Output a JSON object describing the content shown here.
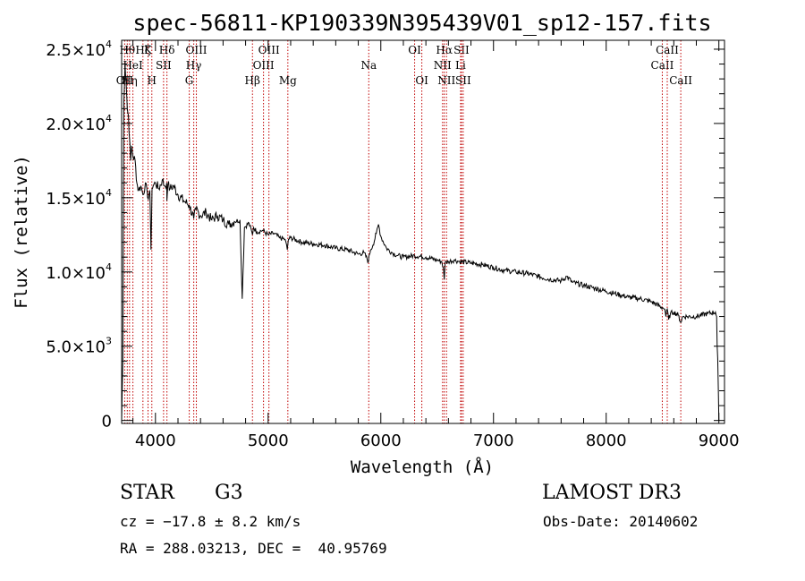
{
  "chart_data": {
    "type": "line",
    "title": "spec-56811-KP190339N395439V01_sp12-157.fits",
    "xlabel": "Wavelength (Å)",
    "ylabel": "Flux (relative)",
    "xlim": [
      3700,
      9050
    ],
    "ylim": [
      -200,
      25600
    ],
    "xticks": [
      {
        "value": 4000,
        "label": "4000"
      },
      {
        "value": 5000,
        "label": "5000"
      },
      {
        "value": 6000,
        "label": "6000"
      },
      {
        "value": 7000,
        "label": "7000"
      },
      {
        "value": 8000,
        "label": "8000"
      },
      {
        "value": 9000,
        "label": "9000"
      }
    ],
    "yticks": [
      {
        "value": 0,
        "mantissa": "0",
        "exp": ""
      },
      {
        "value": 5000,
        "mantissa": "5.0×10",
        "exp": "3"
      },
      {
        "value": 10000,
        "mantissa": "1.0×10",
        "exp": "4"
      },
      {
        "value": 15000,
        "mantissa": "1.5×10",
        "exp": "4"
      },
      {
        "value": 20000,
        "mantissa": "2.0×10",
        "exp": "4"
      },
      {
        "value": 25000,
        "mantissa": "2.5×10",
        "exp": "4"
      }
    ],
    "series": [
      {
        "name": "spectrum",
        "x": [
          3700,
          3710,
          3720,
          3730,
          3740,
          3750,
          3760,
          3770,
          3780,
          3790,
          3800,
          3820,
          3835,
          3850,
          3870,
          3890,
          3910,
          3930,
          3950,
          3960,
          3970,
          3980,
          4000,
          4030,
          4060,
          4080,
          4100,
          4102,
          4110,
          4130,
          4160,
          4200,
          4250,
          4300,
          4340,
          4360,
          4400,
          4450,
          4500,
          4550,
          4600,
          4650,
          4700,
          4750,
          4770,
          4790,
          4830,
          4861,
          4870,
          4900,
          4950,
          5000,
          5050,
          5100,
          5150,
          5170,
          5180,
          5200,
          5300,
          5400,
          5500,
          5600,
          5700,
          5800,
          5850,
          5890,
          5900,
          5910,
          5930,
          5960,
          5980,
          6000,
          6050,
          6100,
          6150,
          6200,
          6300,
          6400,
          6500,
          6540,
          6555,
          6563,
          6570,
          6600,
          6650,
          6700,
          6800,
          6900,
          7000,
          7100,
          7200,
          7300,
          7400,
          7500,
          7600,
          7650,
          7700,
          7800,
          7900,
          8000,
          8100,
          8200,
          8300,
          8400,
          8500,
          8520,
          8530,
          8542,
          8555,
          8570,
          8600,
          8640,
          8662,
          8680,
          8720,
          8800,
          8900,
          8970,
          8980,
          8985,
          8990,
          9000,
          9005
        ],
        "values": [
          0,
          4000,
          21500,
          24000,
          22800,
          21000,
          20500,
          19000,
          17500,
          18500,
          17800,
          17500,
          16000,
          15500,
          15800,
          15200,
          16000,
          15000,
          15500,
          11500,
          15600,
          15800,
          16000,
          15600,
          16200,
          15800,
          16000,
          14800,
          15900,
          15600,
          15800,
          15200,
          14800,
          14500,
          13600,
          14200,
          13800,
          14000,
          13500,
          13800,
          13500,
          13200,
          13400,
          13500,
          8200,
          13000,
          13300,
          12500,
          13000,
          12700,
          12800,
          12500,
          12600,
          12300,
          12200,
          11500,
          12200,
          12300,
          12000,
          11900,
          11800,
          11600,
          11500,
          11200,
          11300,
          10700,
          11200,
          11500,
          11800,
          12600,
          13200,
          12400,
          11600,
          11300,
          11100,
          11000,
          11100,
          11000,
          10800,
          10700,
          10300,
          9500,
          10600,
          10700,
          10800,
          10700,
          10600,
          10500,
          10300,
          10100,
          10000,
          9900,
          9700,
          9500,
          9400,
          9700,
          9300,
          9100,
          8900,
          8700,
          8500,
          8300,
          8200,
          8000,
          7600,
          7500,
          7000,
          7500,
          6800,
          7200,
          7300,
          7100,
          6600,
          7000,
          7000,
          7000,
          7200,
          7300,
          7000,
          5000,
          4200,
          0,
          0
        ]
      }
    ],
    "line_markers": [
      {
        "wave": 3727,
        "label": "OII",
        "row": 3
      },
      {
        "wave": 3750,
        "label": "Hθ",
        "row": 1
      },
      {
        "wave": 3770,
        "label": "Hη",
        "row": 3
      },
      {
        "wave": 3800,
        "label": "HeI",
        "row": 2
      },
      {
        "wave": 3889,
        "label": "Hζ",
        "row": 1
      },
      {
        "wave": 3934,
        "label": "K",
        "row": 1
      },
      {
        "wave": 3968,
        "label": "H",
        "row": 3
      },
      {
        "wave": 4072,
        "label": "SII",
        "row": 2
      },
      {
        "wave": 4102,
        "label": "Hδ",
        "row": 1
      },
      {
        "wave": 4300,
        "label": "G",
        "row": 3
      },
      {
        "wave": 4340,
        "label": "Hγ",
        "row": 2
      },
      {
        "wave": 4363,
        "label": "OIII",
        "row": 1
      },
      {
        "wave": 4861,
        "label": "Hβ",
        "row": 3
      },
      {
        "wave": 4959,
        "label": "OIII",
        "row": 2
      },
      {
        "wave": 5007,
        "label": "OIII",
        "row": 1
      },
      {
        "wave": 5175,
        "label": "Mg",
        "row": 3
      },
      {
        "wave": 5893,
        "label": "Na",
        "row": 2
      },
      {
        "wave": 6300,
        "label": "OI",
        "row": 1
      },
      {
        "wave": 6364,
        "label": "OI",
        "row": 3
      },
      {
        "wave": 6548,
        "label": "NII",
        "row": 2
      },
      {
        "wave": 6563,
        "label": "Hα",
        "row": 1
      },
      {
        "wave": 6583,
        "label": "NII",
        "row": 3
      },
      {
        "wave": 6708,
        "label": "Li",
        "row": 2
      },
      {
        "wave": 6716,
        "label": "SII",
        "row": 1
      },
      {
        "wave": 6731,
        "label": "SII",
        "row": 3
      },
      {
        "wave": 8498,
        "label": "CaII",
        "row": 2
      },
      {
        "wave": 8542,
        "label": "CaII",
        "row": 1
      },
      {
        "wave": 8662,
        "label": "CaII",
        "row": 3
      }
    ]
  },
  "info": {
    "object_class": "STAR",
    "subclass": "G3",
    "survey": "LAMOST DR3",
    "redshift": "cz = −17.8 ± 8.2 km/s",
    "obs_date": "Obs-Date: 20140602",
    "coords": "RA = 288.03213, DEC =  40.95769"
  }
}
